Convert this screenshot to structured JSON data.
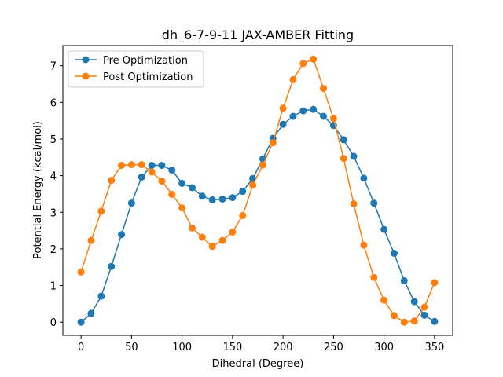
{
  "chart_data": {
    "type": "line",
    "title": "dh_6-7-9-11 JAX-AMBER Fitting",
    "xlabel": "Dihedral (Degree)",
    "ylabel": "Potential Energy (kcal/mol)",
    "xlim": [
      -18,
      368
    ],
    "ylim": [
      -0.36,
      7.55
    ],
    "xticks": [
      0,
      50,
      100,
      150,
      200,
      250,
      300,
      350
    ],
    "yticks": [
      0,
      1,
      2,
      3,
      4,
      5,
      6,
      7
    ],
    "legend_position": "top-left",
    "x": [
      0,
      10,
      20,
      30,
      40,
      50,
      60,
      70,
      80,
      90,
      100,
      110,
      120,
      130,
      140,
      150,
      160,
      170,
      180,
      190,
      200,
      210,
      220,
      230,
      240,
      250,
      260,
      270,
      280,
      290,
      300,
      310,
      320,
      330,
      340,
      350
    ],
    "series": [
      {
        "name": "Pre Optimization",
        "color": "#1f77b4",
        "values": [
          0.0,
          0.24,
          0.71,
          1.52,
          2.39,
          3.25,
          3.96,
          4.28,
          4.28,
          4.15,
          3.79,
          3.67,
          3.44,
          3.34,
          3.36,
          3.4,
          3.57,
          3.92,
          4.46,
          5.02,
          5.4,
          5.62,
          5.77,
          5.81,
          5.62,
          5.37,
          4.98,
          4.53,
          3.93,
          3.25,
          2.53,
          1.88,
          1.13,
          0.56,
          0.19,
          0.02
        ]
      },
      {
        "name": "Post Optimization",
        "color": "#ff7f0e",
        "values": [
          1.37,
          2.23,
          3.03,
          3.87,
          4.28,
          4.3,
          4.3,
          4.1,
          3.85,
          3.49,
          3.12,
          2.57,
          2.32,
          2.07,
          2.23,
          2.46,
          2.91,
          3.74,
          4.29,
          4.9,
          5.84,
          6.62,
          7.06,
          7.18,
          6.38,
          5.56,
          4.47,
          3.23,
          2.1,
          1.22,
          0.6,
          0.18,
          0.0,
          0.03,
          0.41,
          1.08
        ]
      }
    ]
  }
}
